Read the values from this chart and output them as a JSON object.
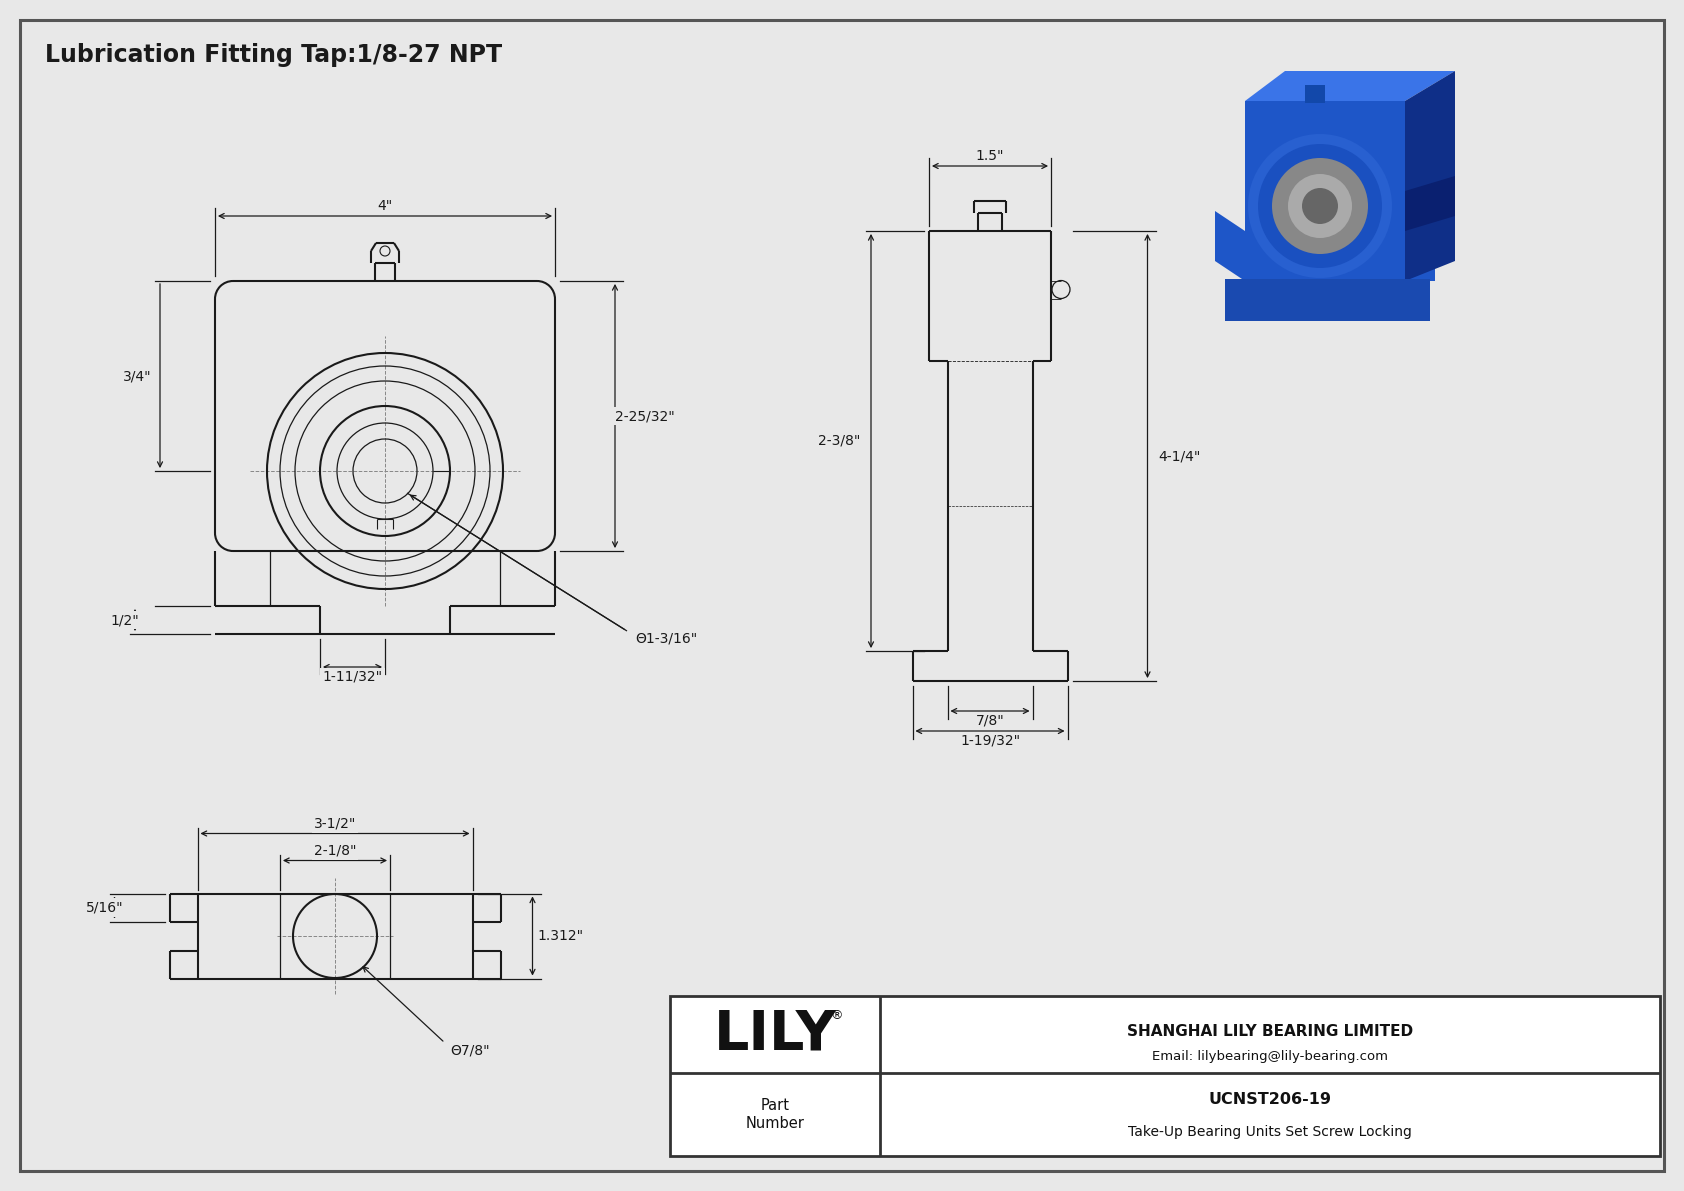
{
  "title": "Lubrication Fitting Tap:1/8-27 NPT",
  "bg_color": "#e8e8e8",
  "line_color": "#1a1a1a",
  "dim_color": "#1a1a1a",
  "title_fontsize": 17,
  "dim_fontsize": 10,
  "part_number": "UCNST206-19",
  "part_description": "Take-Up Bearing Units Set Screw Locking",
  "company": "SHANGHAI LILY BEARING LIMITED",
  "email": "Email: lilybearing@lily-bearing.com",
  "lily_text": "LILY",
  "dims_front": {
    "width_top": "4\"",
    "height_right": "2-25/32\"",
    "height_left_top": "3/4\"",
    "height_left_bot": "1/2\"",
    "width_bot": "1-11/32\"",
    "bore": "Θ1-3/16\""
  },
  "dims_side": {
    "width_top": "1.5\"",
    "height_right": "4-1/4\"",
    "height_left": "2-3/8\"",
    "width_bot1": "7/8\"",
    "width_bot2": "1-19/32\""
  },
  "dims_bottom": {
    "width1": "3-1/2\"",
    "width2": "2-1/8\"",
    "height": "1.312\"",
    "bore": "Θ7/8\"",
    "left": "5/16\""
  }
}
